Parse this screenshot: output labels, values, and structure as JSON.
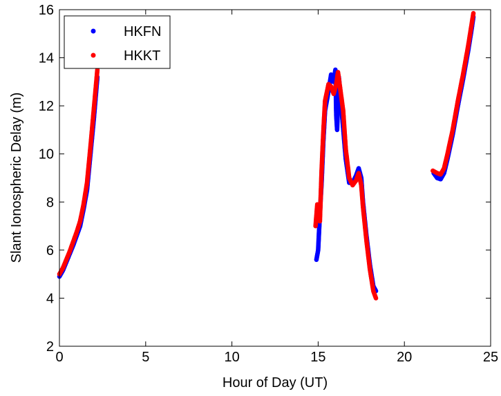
{
  "chart_data": {
    "type": "scatter",
    "xlabel": "Hour of Day (UT)",
    "ylabel": "Slant Ionospheric Delay (m)",
    "xlim": [
      0,
      25
    ],
    "ylim": [
      2,
      16
    ],
    "xticks": [
      "0",
      "5",
      "10",
      "15",
      "20",
      "25"
    ],
    "yticks": [
      "2",
      "4",
      "6",
      "8",
      "10",
      "12",
      "14",
      "16"
    ],
    "grid": false,
    "legend_position": "top-left",
    "series": [
      {
        "name": "HKFN",
        "color": "#0000ff",
        "segments": [
          [
            [
              0.0,
              4.9
            ],
            [
              0.2,
              5.15
            ],
            [
              0.4,
              5.5
            ],
            [
              0.6,
              5.85
            ],
            [
              0.8,
              6.2
            ],
            [
              1.0,
              6.6
            ],
            [
              1.2,
              7.0
            ],
            [
              1.4,
              7.7
            ],
            [
              1.6,
              8.5
            ],
            [
              1.8,
              10.0
            ],
            [
              2.0,
              11.5
            ],
            [
              2.2,
              13.2
            ]
          ],
          [
            [
              14.9,
              5.6
            ],
            [
              15.0,
              6.0
            ],
            [
              15.1,
              7.5
            ],
            [
              15.2,
              8.8
            ],
            [
              15.3,
              10.5
            ],
            [
              15.4,
              11.8
            ],
            [
              15.6,
              12.6
            ],
            [
              15.75,
              13.3
            ],
            [
              15.9,
              13.0
            ],
            [
              16.0,
              13.5
            ],
            [
              16.05,
              11.6
            ],
            [
              16.1,
              11.0
            ],
            [
              16.2,
              13.2
            ],
            [
              16.3,
              12.4
            ],
            [
              16.4,
              11.5
            ],
            [
              16.6,
              9.8
            ],
            [
              16.8,
              8.8
            ],
            [
              17.0,
              8.8
            ],
            [
              17.2,
              9.1
            ],
            [
              17.35,
              9.4
            ],
            [
              17.5,
              9.0
            ],
            [
              17.6,
              8.0
            ],
            [
              17.8,
              6.6
            ],
            [
              18.0,
              5.4
            ],
            [
              18.2,
              4.5
            ],
            [
              18.35,
              4.3
            ]
          ],
          [
            [
              21.7,
              9.2
            ],
            [
              21.9,
              9.0
            ],
            [
              22.1,
              8.95
            ],
            [
              22.3,
              9.2
            ],
            [
              22.5,
              9.8
            ],
            [
              22.8,
              10.8
            ],
            [
              23.1,
              12.0
            ],
            [
              23.4,
              13.1
            ],
            [
              23.7,
              14.3
            ],
            [
              23.9,
              15.2
            ],
            [
              24.0,
              15.7
            ]
          ]
        ]
      },
      {
        "name": "HKKT",
        "color": "#ff0000",
        "segments": [
          [
            [
              0.0,
              5.0
            ],
            [
              0.2,
              5.25
            ],
            [
              0.4,
              5.6
            ],
            [
              0.6,
              5.95
            ],
            [
              0.8,
              6.35
            ],
            [
              1.0,
              6.75
            ],
            [
              1.2,
              7.2
            ],
            [
              1.4,
              7.9
            ],
            [
              1.6,
              8.8
            ],
            [
              1.8,
              10.3
            ],
            [
              2.0,
              11.9
            ],
            [
              2.2,
              13.5
            ]
          ],
          [
            [
              14.85,
              7.0
            ],
            [
              14.95,
              7.9
            ],
            [
              15.1,
              7.2
            ],
            [
              15.2,
              9.3
            ],
            [
              15.3,
              10.9
            ],
            [
              15.4,
              12.2
            ],
            [
              15.6,
              12.9
            ],
            [
              15.75,
              12.8
            ],
            [
              15.9,
              12.5
            ],
            [
              16.05,
              12.9
            ],
            [
              16.15,
              13.4
            ],
            [
              16.3,
              12.6
            ],
            [
              16.45,
              11.8
            ],
            [
              16.6,
              10.2
            ],
            [
              16.8,
              9.0
            ],
            [
              17.0,
              8.7
            ],
            [
              17.2,
              8.9
            ],
            [
              17.35,
              9.2
            ],
            [
              17.5,
              8.7
            ],
            [
              17.6,
              7.8
            ],
            [
              17.8,
              6.4
            ],
            [
              18.0,
              5.2
            ],
            [
              18.2,
              4.3
            ],
            [
              18.35,
              4.0
            ]
          ],
          [
            [
              21.65,
              9.3
            ],
            [
              21.9,
              9.2
            ],
            [
              22.1,
              9.15
            ],
            [
              22.3,
              9.4
            ],
            [
              22.5,
              10.0
            ],
            [
              22.8,
              11.0
            ],
            [
              23.1,
              12.2
            ],
            [
              23.4,
              13.3
            ],
            [
              23.7,
              14.5
            ],
            [
              23.9,
              15.4
            ],
            [
              24.0,
              15.85
            ]
          ]
        ]
      }
    ]
  }
}
